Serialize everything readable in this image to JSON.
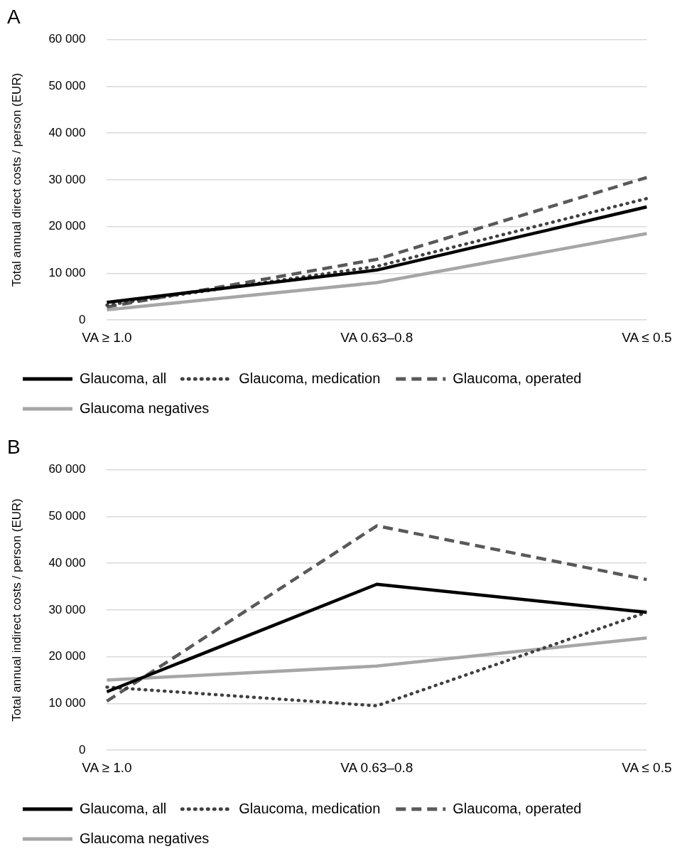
{
  "chart_data": [
    {
      "type": "line",
      "title": "A",
      "ylabel": "Total annual direct costs / person (EUR)",
      "categories": [
        "VA ≥ 1.0",
        "VA 0.63–0.8",
        "VA ≤ 0.5"
      ],
      "ylim": [
        0,
        60000
      ],
      "yticks": [
        {
          "value": 0,
          "label": "0"
        },
        {
          "value": 10000,
          "label": "10 000"
        },
        {
          "value": 20000,
          "label": "20 000"
        },
        {
          "value": 30000,
          "label": "30 000"
        },
        {
          "value": 40000,
          "label": "40 000"
        },
        {
          "value": 50000,
          "label": "50 000"
        },
        {
          "value": 60000,
          "label": "60 000"
        }
      ],
      "grid": "y",
      "legend": "bottom",
      "marker": "none",
      "series": [
        {
          "name": "Glaucoma, all",
          "color": "#000000",
          "line_style": "solid",
          "values": [
            3800,
            10700,
            24200
          ]
        },
        {
          "name": "Glaucoma, medication",
          "color": "#404040",
          "line_style": "dotted",
          "values": [
            3200,
            11500,
            26000
          ]
        },
        {
          "name": "Glaucoma, operated",
          "color": "#595959",
          "line_style": "dashed",
          "values": [
            2800,
            13000,
            30500
          ]
        },
        {
          "name": "Glaucoma negatives",
          "color": "#a6a6a6",
          "line_style": "solid",
          "values": [
            2200,
            8000,
            18500
          ]
        }
      ]
    },
    {
      "type": "line",
      "title": "B",
      "ylabel": "Total annual indirect costs / person (EUR)",
      "categories": [
        "VA ≥ 1.0",
        "VA 0.63–0.8",
        "VA ≤ 0.5"
      ],
      "ylim": [
        0,
        60000
      ],
      "yticks": [
        {
          "value": 0,
          "label": "0"
        },
        {
          "value": 10000,
          "label": "10 000"
        },
        {
          "value": 20000,
          "label": "20 000"
        },
        {
          "value": 30000,
          "label": "30 000"
        },
        {
          "value": 40000,
          "label": "40 000"
        },
        {
          "value": 50000,
          "label": "50 000"
        },
        {
          "value": 60000,
          "label": "60 000"
        }
      ],
      "grid": "y",
      "legend": "bottom",
      "marker": "none",
      "series": [
        {
          "name": "Glaucoma, all",
          "color": "#000000",
          "line_style": "solid",
          "values": [
            12500,
            35500,
            29500
          ]
        },
        {
          "name": "Glaucoma, medication",
          "color": "#404040",
          "line_style": "dotted",
          "values": [
            13500,
            9500,
            29500
          ]
        },
        {
          "name": "Glaucoma, operated",
          "color": "#595959",
          "line_style": "dashed",
          "values": [
            10500,
            48000,
            36500
          ]
        },
        {
          "name": "Glaucoma negatives",
          "color": "#a6a6a6",
          "line_style": "solid",
          "values": [
            15000,
            18000,
            24000
          ]
        }
      ]
    }
  ]
}
